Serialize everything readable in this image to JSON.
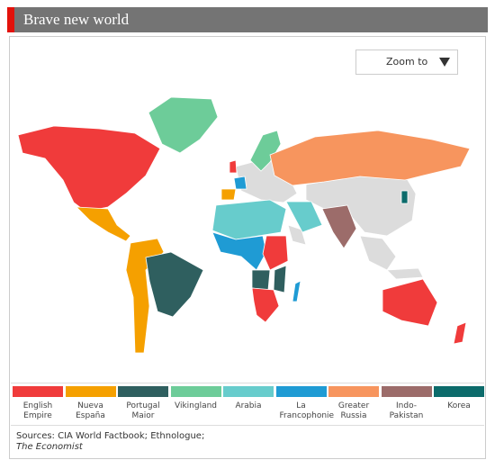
{
  "header": {
    "title": "Brave new world"
  },
  "zoom_button": {
    "label": "Zoom to"
  },
  "legend": [
    {
      "name": "English Empire",
      "color": "#f03b3b"
    },
    {
      "name": "Nueva España",
      "color": "#f5a000"
    },
    {
      "name": "Portugal Maior",
      "color": "#2f5f5f"
    },
    {
      "name": "Vikingland",
      "color": "#6dcc99"
    },
    {
      "name": "Arabia",
      "color": "#67cccc"
    },
    {
      "name": "La Francophonie",
      "color": "#1f9bd4"
    },
    {
      "name": "Greater Russia",
      "color": "#f7955e"
    },
    {
      "name": "Indo-Pakistan",
      "color": "#9c6c6a"
    },
    {
      "name": "Korea",
      "color": "#0c6b6b"
    }
  ],
  "sources": {
    "line1": "Sources: CIA World Factbook; Ethnologue;",
    "line2": "The Economist"
  }
}
